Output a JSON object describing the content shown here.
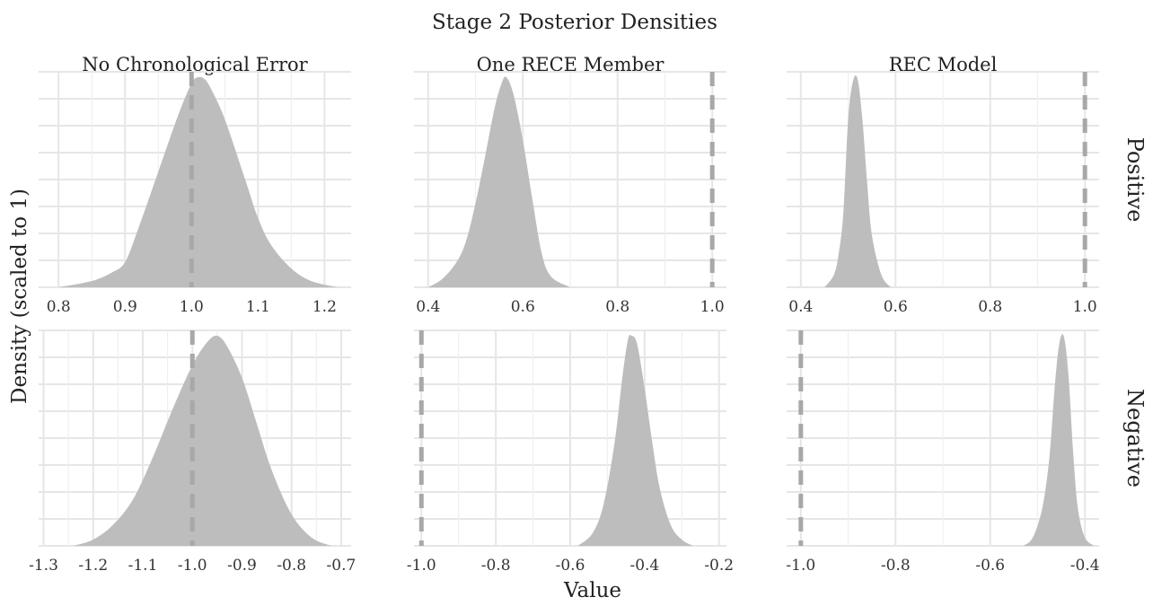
{
  "chart_data": {
    "type": "area",
    "title": "Stage 2 Posterior Densities",
    "xlabel": "Value",
    "ylabel": "Density (scaled to 1)",
    "columns": [
      "No Chronological Error",
      "One RECE Member",
      "REC Model"
    ],
    "rows": [
      "Positive",
      "Negative"
    ],
    "fill_color": "#bdbdbd",
    "reference_line_color": "#a8a8a8",
    "grid": true,
    "panels": [
      {
        "column": "No Chronological Error",
        "row": "Positive",
        "xlim": [
          0.77,
          1.24
        ],
        "ticks": [
          0.8,
          0.9,
          1.0,
          1.1,
          1.2
        ],
        "tick_labels": [
          "0.8",
          "0.9",
          "1.0",
          "1.1",
          "1.2"
        ],
        "reference": 1.0,
        "density": {
          "x": [
            0.8,
            0.85,
            0.88,
            0.9,
            0.92,
            0.95,
            0.98,
            1.0,
            1.01,
            1.02,
            1.03,
            1.05,
            1.08,
            1.1,
            1.12,
            1.15,
            1.18,
            1.22
          ],
          "y": [
            0.0,
            0.03,
            0.07,
            0.12,
            0.28,
            0.55,
            0.82,
            0.97,
            1.0,
            0.99,
            0.94,
            0.8,
            0.52,
            0.33,
            0.2,
            0.09,
            0.03,
            0.0
          ]
        }
      },
      {
        "column": "One RECE Member",
        "row": "Positive",
        "xlim": [
          0.37,
          1.03
        ],
        "ticks": [
          0.4,
          0.6,
          0.8,
          1.0
        ],
        "tick_labels": [
          "0.4",
          "0.6",
          "0.8",
          "1.0"
        ],
        "reference": 1.0,
        "density": {
          "x": [
            0.4,
            0.43,
            0.46,
            0.48,
            0.5,
            0.52,
            0.54,
            0.555,
            0.565,
            0.58,
            0.6,
            0.62,
            0.64,
            0.66,
            0.7
          ],
          "y": [
            0.0,
            0.04,
            0.12,
            0.22,
            0.4,
            0.62,
            0.85,
            0.97,
            1.0,
            0.92,
            0.7,
            0.42,
            0.16,
            0.05,
            0.0
          ]
        }
      },
      {
        "column": "REC Model",
        "row": "Positive",
        "xlim": [
          0.37,
          1.03
        ],
        "ticks": [
          0.4,
          0.6,
          0.8,
          1.0
        ],
        "tick_labels": [
          "0.4",
          "0.6",
          "0.8",
          "1.0"
        ],
        "reference": 1.0,
        "density": {
          "x": [
            0.45,
            0.47,
            0.48,
            0.49,
            0.5,
            0.51,
            0.52,
            0.53,
            0.54,
            0.55,
            0.57,
            0.59
          ],
          "y": [
            0.0,
            0.06,
            0.16,
            0.36,
            0.8,
            0.98,
            0.99,
            0.8,
            0.5,
            0.25,
            0.06,
            0.0
          ]
        }
      },
      {
        "column": "No Chronological Error",
        "row": "Negative",
        "xlim": [
          -1.31,
          -0.68
        ],
        "ticks": [
          -1.3,
          -1.2,
          -1.1,
          -1.0,
          -0.9,
          -0.8,
          -0.7
        ],
        "tick_labels": [
          "-1.3",
          "-1.2",
          "-1.1",
          "-1.0",
          "-0.9",
          "-0.8",
          "-0.7"
        ],
        "reference": -1.0,
        "density": {
          "x": [
            -1.24,
            -1.2,
            -1.16,
            -1.12,
            -1.08,
            -1.04,
            -1.0,
            -0.97,
            -0.95,
            -0.93,
            -0.9,
            -0.87,
            -0.84,
            -0.8,
            -0.76,
            -0.72
          ],
          "y": [
            0.0,
            0.03,
            0.1,
            0.22,
            0.42,
            0.65,
            0.86,
            0.97,
            1.0,
            0.95,
            0.8,
            0.58,
            0.36,
            0.15,
            0.04,
            0.0
          ]
        }
      },
      {
        "column": "One RECE Member",
        "row": "Negative",
        "xlim": [
          -1.02,
          -0.18
        ],
        "ticks": [
          -1.0,
          -0.8,
          -0.6,
          -0.4,
          -0.2
        ],
        "tick_labels": [
          "-1.0",
          "-0.8",
          "-0.6",
          "-0.4",
          "-0.2"
        ],
        "reference": -1.0,
        "density": {
          "x": [
            -0.58,
            -0.54,
            -0.51,
            -0.48,
            -0.46,
            -0.445,
            -0.435,
            -0.42,
            -0.4,
            -0.38,
            -0.36,
            -0.33,
            -0.3,
            -0.27
          ],
          "y": [
            0.0,
            0.06,
            0.2,
            0.5,
            0.8,
            0.98,
            1.0,
            0.96,
            0.75,
            0.5,
            0.28,
            0.1,
            0.03,
            0.0
          ]
        }
      },
      {
        "column": "REC Model",
        "row": "Negative",
        "xlim": [
          -1.03,
          -0.37
        ],
        "ticks": [
          -1.0,
          -0.8,
          -0.6,
          -0.4
        ],
        "tick_labels": [
          "-1.0",
          "-0.8",
          "-0.6",
          "-0.4"
        ],
        "reference": -1.0,
        "density": {
          "x": [
            -0.53,
            -0.51,
            -0.49,
            -0.475,
            -0.465,
            -0.455,
            -0.445,
            -0.435,
            -0.425,
            -0.415,
            -0.4,
            -0.38
          ],
          "y": [
            0.0,
            0.04,
            0.18,
            0.42,
            0.72,
            0.95,
            1.0,
            0.82,
            0.45,
            0.18,
            0.04,
            0.0
          ]
        }
      }
    ]
  }
}
